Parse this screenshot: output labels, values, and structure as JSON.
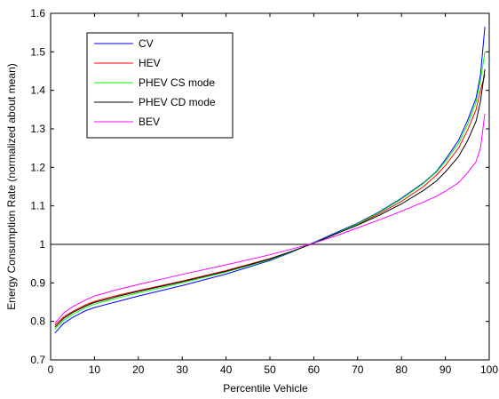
{
  "chart_data": {
    "type": "line",
    "title": "",
    "xlabel": "Percentile Vehicle",
    "ylabel": "Energy Consumption Rate (normalized about mean)",
    "xlim": [
      0,
      100
    ],
    "ylim": [
      0.7,
      1.6
    ],
    "xticks": [
      "0",
      "10",
      "20",
      "30",
      "40",
      "50",
      "60",
      "70",
      "80",
      "90",
      "100"
    ],
    "yticks": [
      "0.7",
      "0.8",
      "0.9",
      "1",
      "1.1",
      "1.2",
      "1.3",
      "1.4",
      "1.5",
      "1.6"
    ],
    "grid": false,
    "legend_position": "top-left",
    "reference_line": {
      "y": 1.0,
      "color": "#000000"
    },
    "x": [
      1,
      3,
      5,
      8,
      10,
      15,
      20,
      30,
      40,
      50,
      55,
      60,
      65,
      70,
      75,
      80,
      85,
      88,
      90,
      93,
      95,
      97,
      98,
      99
    ],
    "series": [
      {
        "name": "CV",
        "color": "#0000ff",
        "values": [
          0.77,
          0.795,
          0.81,
          0.828,
          0.836,
          0.851,
          0.866,
          0.893,
          0.923,
          0.958,
          0.98,
          1.005,
          1.03,
          1.055,
          1.085,
          1.12,
          1.16,
          1.19,
          1.22,
          1.27,
          1.32,
          1.38,
          1.44,
          1.565
        ]
      },
      {
        "name": "HEV",
        "color": "#ff0000",
        "values": [
          0.79,
          0.812,
          0.826,
          0.843,
          0.852,
          0.867,
          0.88,
          0.905,
          0.932,
          0.963,
          0.982,
          1.003,
          1.027,
          1.052,
          1.08,
          1.112,
          1.15,
          1.18,
          1.205,
          1.25,
          1.295,
          1.35,
          1.4,
          1.44
        ]
      },
      {
        "name": "PHEV CS mode",
        "color": "#00ff00",
        "values": [
          0.78,
          0.803,
          0.818,
          0.836,
          0.845,
          0.86,
          0.874,
          0.9,
          0.928,
          0.96,
          0.981,
          1.004,
          1.028,
          1.053,
          1.083,
          1.118,
          1.158,
          1.188,
          1.215,
          1.262,
          1.31,
          1.37,
          1.425,
          1.5
        ]
      },
      {
        "name": "PHEV CD mode",
        "color": "#000000",
        "values": [
          0.785,
          0.808,
          0.823,
          0.84,
          0.849,
          0.864,
          0.878,
          0.903,
          0.93,
          0.962,
          0.982,
          1.003,
          1.027,
          1.05,
          1.076,
          1.105,
          1.14,
          1.165,
          1.188,
          1.228,
          1.268,
          1.32,
          1.37,
          1.455
        ]
      },
      {
        "name": "BEV",
        "color": "#ff00ff",
        "values": [
          0.795,
          0.822,
          0.838,
          0.856,
          0.866,
          0.882,
          0.896,
          0.922,
          0.947,
          0.973,
          0.988,
          1.003,
          1.022,
          1.043,
          1.064,
          1.086,
          1.11,
          1.125,
          1.138,
          1.16,
          1.185,
          1.215,
          1.25,
          1.34
        ]
      }
    ]
  }
}
